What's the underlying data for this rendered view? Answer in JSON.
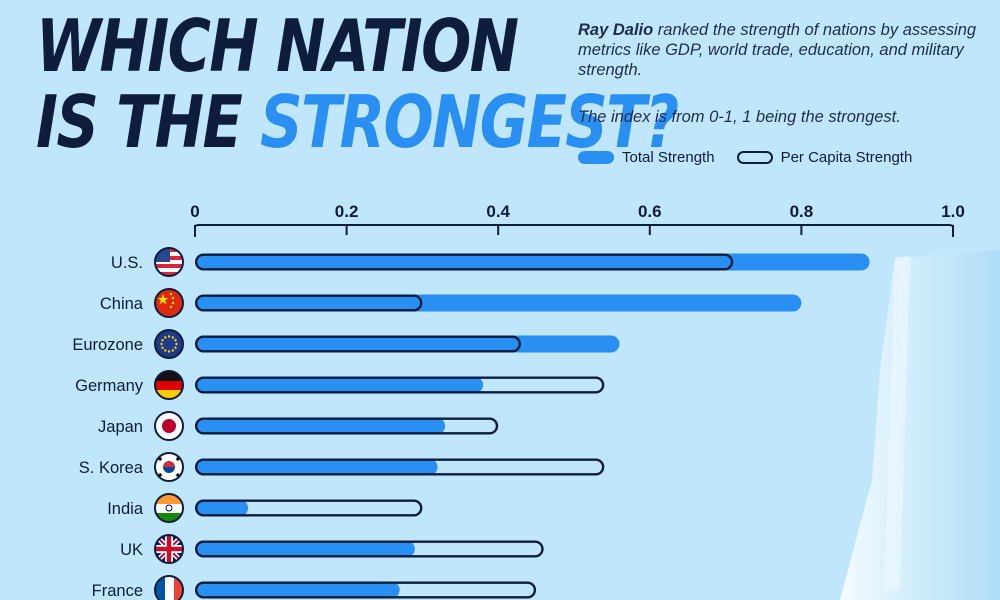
{
  "header": {
    "title_line1": "Which Nation",
    "title_line2_prefix": "is the ",
    "title_line2_accent": "Strongest?",
    "intro_bold": "Ray Dalio",
    "intro_rest": " ranked the strength of nations by assessing metrics like GDP, world trade, education, and military strength.",
    "note": "The index is from 0-1, 1 being the strongest."
  },
  "legend": {
    "total_label": "Total Strength",
    "percap_label": "Per Capita Strength"
  },
  "colors": {
    "background": "#bfe6fb",
    "total": "#2a8ff3",
    "outline": "#0e1d3b",
    "accent": "#2a8ff3"
  },
  "chart_data": {
    "type": "bar",
    "orientation": "horizontal",
    "xlim": [
      0,
      1.0
    ],
    "ticks": [
      "0",
      "0.2",
      "0.4",
      "0.6",
      "0.8",
      "1.0"
    ],
    "categories": [
      "U.S.",
      "China",
      "Eurozone",
      "Germany",
      "Japan",
      "S. Korea",
      "India",
      "UK",
      "France"
    ],
    "flags": [
      "us-flag",
      "china-flag",
      "eu-flag",
      "germany-flag",
      "japan-flag",
      "south-korea-flag",
      "india-flag",
      "uk-flag",
      "france-flag"
    ],
    "series": [
      {
        "name": "Total Strength",
        "values": [
          0.89,
          0.8,
          0.56,
          0.38,
          0.33,
          0.32,
          0.07,
          0.29,
          0.27
        ]
      },
      {
        "name": "Per Capita Strength",
        "values": [
          0.71,
          0.3,
          0.43,
          0.54,
          0.4,
          0.54,
          0.3,
          0.46,
          0.45
        ]
      }
    ],
    "legend_position": "top-right",
    "grid": false
  }
}
